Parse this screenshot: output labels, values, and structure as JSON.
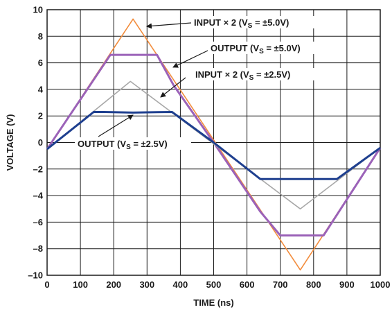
{
  "chart_data": {
    "type": "line",
    "xlabel": "TIME (ns)",
    "ylabel": "VOLTAGE (V)",
    "xlim": [
      0,
      1000
    ],
    "ylim": [
      -10,
      10
    ],
    "xticks": [
      0,
      100,
      200,
      300,
      400,
      500,
      600,
      700,
      800,
      900,
      1000
    ],
    "yticks": [
      -10,
      -8,
      -6,
      -4,
      -2,
      0,
      2,
      4,
      6,
      8,
      10
    ],
    "xtick_labels": [
      "0",
      "100",
      "200",
      "300",
      "400",
      "500",
      "600",
      "700",
      "800",
      "900",
      "1000"
    ],
    "ytick_labels": [
      "–10",
      "–8",
      "–6",
      "–4",
      "–2",
      "0",
      "2",
      "4",
      "6",
      "8",
      "10"
    ],
    "grid": true,
    "series": [
      {
        "color": "#f28c3c",
        "x": [
          0,
          258,
          760,
          1000
        ],
        "y": [
          -0.5,
          9.3,
          -9.6,
          -0.4
        ]
      },
      {
        "color": "#9b62b8",
        "x": [
          0,
          190,
          200,
          258,
          280,
          330,
          380,
          500,
          640,
          700,
          760,
          830,
          1000
        ],
        "y": [
          -0.5,
          6.6,
          6.6,
          6.6,
          6.6,
          6.6,
          4.3,
          0,
          -5.2,
          -7.0,
          -7.0,
          -7.0,
          -0.4
        ]
      },
      {
        "color": "#a8a8a8",
        "x": [
          0,
          250,
          760,
          1000
        ],
        "y": [
          -0.5,
          4.6,
          -5.0,
          -0.4
        ]
      },
      {
        "color": "#1e3f8f",
        "x": [
          0,
          140,
          170,
          258,
          330,
          375,
          500,
          640,
          700,
          760,
          870,
          1000
        ],
        "y": [
          -0.5,
          2.3,
          2.3,
          2.25,
          2.28,
          2.3,
          0,
          -2.75,
          -2.75,
          -2.75,
          -2.75,
          -0.4
        ]
      }
    ],
    "annotations": [
      {
        "main": "INPUT × 2 (V",
        "sub": "S",
        "tail": " = ±5.0V)"
      },
      {
        "main": "OUTPUT (V",
        "sub": "S",
        "tail": " = ±5.0V)"
      },
      {
        "main": "INPUT × 2 (V",
        "sub": "S",
        "tail": " = ±2.5V)"
      },
      {
        "main": "OUTPUT (V",
        "sub": "S",
        "tail": " = ±2.5V)"
      }
    ]
  }
}
